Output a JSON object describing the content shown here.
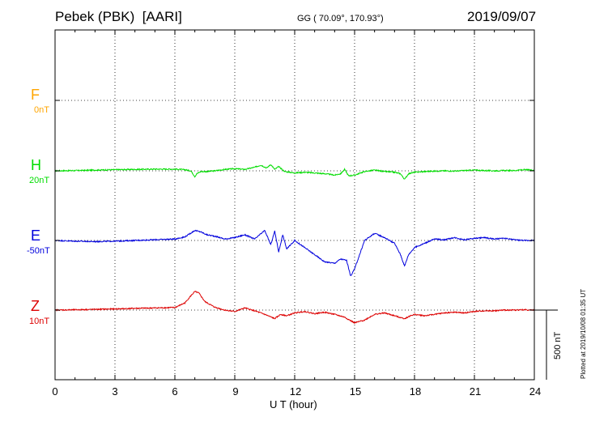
{
  "header": {
    "station": "Pebek (PBK)  [AARI]",
    "coords": "GG ( 70.09°, 170.93°)",
    "date": "2019/09/07"
  },
  "components": [
    {
      "key": "F",
      "letter": "F",
      "baseline": "0nT",
      "color": "#ffa500"
    },
    {
      "key": "H",
      "letter": "H",
      "baseline": "20nT",
      "color": "#00dd00"
    },
    {
      "key": "E",
      "letter": "E",
      "baseline": "-50nT",
      "color": "#0000dd"
    },
    {
      "key": "Z",
      "letter": "Z",
      "baseline": "10nT",
      "color": "#dd0000"
    }
  ],
  "x_ticks": [
    "0",
    "3",
    "6",
    "9",
    "12",
    "15",
    "18",
    "21",
    "24"
  ],
  "xlabel": "U T (hour)",
  "scale_label": "500 nT",
  "plotted_note": "Plotted at 2019/10/08 01:35 UT",
  "chart_data": {
    "type": "line",
    "title": "Pebek (PBK)  [AARI]",
    "xlabel": "U T (hour)",
    "ylabel": "",
    "xlim": [
      0,
      24
    ],
    "x_ticks": [
      0,
      3,
      6,
      9,
      12,
      15,
      18,
      21,
      24
    ],
    "grid": true,
    "scale_bar_nT": 500,
    "series": [
      {
        "name": "H",
        "baseline_nT": 20,
        "color": "#00dd00",
        "x": [
          0,
          1,
          2,
          3,
          4,
          5,
          6,
          6.5,
          6.8,
          7.0,
          7.1,
          7.3,
          7.6,
          8.0,
          8.5,
          9.0,
          9.5,
          10.0,
          10.3,
          10.6,
          10.8,
          11.0,
          11.2,
          11.5,
          12.0,
          12.5,
          13.0,
          13.5,
          14.0,
          14.3,
          14.5,
          14.7,
          15.0,
          15.5,
          16.0,
          16.5,
          17.0,
          17.3,
          17.5,
          17.7,
          18.0,
          18.5,
          19.0,
          19.5,
          20.0,
          20.5,
          21.0,
          21.5,
          22.0,
          22.5,
          23.0,
          23.5,
          24.0
        ],
        "y": [
          0,
          2,
          5,
          8,
          10,
          12,
          12,
          8,
          0,
          -40,
          -20,
          -5,
          -5,
          0,
          10,
          15,
          10,
          25,
          40,
          20,
          45,
          10,
          30,
          -5,
          -15,
          -10,
          -15,
          -20,
          -30,
          -20,
          10,
          -35,
          -30,
          -5,
          5,
          -5,
          -10,
          -20,
          -60,
          -20,
          -10,
          -5,
          -2,
          0,
          -2,
          2,
          5,
          2,
          0,
          2,
          2,
          8,
          5
        ]
      },
      {
        "name": "E",
        "baseline_nT": -50,
        "color": "#0000dd",
        "x": [
          0,
          1,
          2,
          3,
          4,
          5,
          6,
          6.5,
          7.0,
          7.3,
          7.6,
          8.0,
          8.5,
          9.0,
          9.5,
          10.0,
          10.5,
          10.8,
          11.0,
          11.2,
          11.4,
          11.6,
          12.0,
          12.5,
          13.0,
          13.5,
          14.0,
          14.3,
          14.6,
          14.8,
          15.0,
          15.5,
          16.0,
          16.5,
          17.0,
          17.3,
          17.5,
          17.7,
          18.0,
          18.5,
          19.0,
          19.5,
          20.0,
          20.5,
          21.0,
          21.5,
          22.0,
          22.5,
          23.0,
          23.5,
          24.0
        ],
        "y": [
          0,
          -5,
          -8,
          -5,
          0,
          5,
          10,
          25,
          70,
          60,
          40,
          30,
          10,
          20,
          40,
          10,
          70,
          -30,
          65,
          -80,
          40,
          -60,
          0,
          -50,
          -100,
          -150,
          -160,
          -130,
          -140,
          -250,
          -200,
          0,
          50,
          20,
          -20,
          -100,
          -180,
          -100,
          -50,
          -20,
          10,
          5,
          20,
          5,
          15,
          20,
          10,
          15,
          5,
          0,
          0
        ]
      },
      {
        "name": "Z",
        "baseline_nT": 10,
        "color": "#dd0000",
        "x": [
          0,
          1,
          2,
          3,
          4,
          5,
          6,
          6.5,
          6.8,
          7.0,
          7.2,
          7.5,
          8.0,
          8.5,
          9.0,
          9.5,
          10.0,
          10.5,
          11.0,
          11.3,
          11.6,
          12.0,
          12.5,
          13.0,
          13.5,
          14.0,
          14.5,
          15.0,
          15.5,
          16.0,
          16.5,
          17.0,
          17.5,
          17.8,
          18.0,
          18.5,
          19.0,
          19.5,
          20.0,
          20.5,
          21.0,
          21.5,
          22.0,
          22.5,
          23.0,
          23.5,
          24.0
        ],
        "y": [
          0,
          2,
          5,
          8,
          12,
          15,
          18,
          50,
          100,
          130,
          120,
          60,
          20,
          0,
          -10,
          15,
          -5,
          -30,
          -60,
          -30,
          -40,
          -20,
          -10,
          -25,
          -15,
          -30,
          -50,
          -90,
          -70,
          -30,
          -20,
          -40,
          -60,
          -40,
          -30,
          -40,
          -30,
          -20,
          -15,
          -20,
          -10,
          -5,
          -5,
          0,
          0,
          2,
          0
        ]
      }
    ]
  }
}
